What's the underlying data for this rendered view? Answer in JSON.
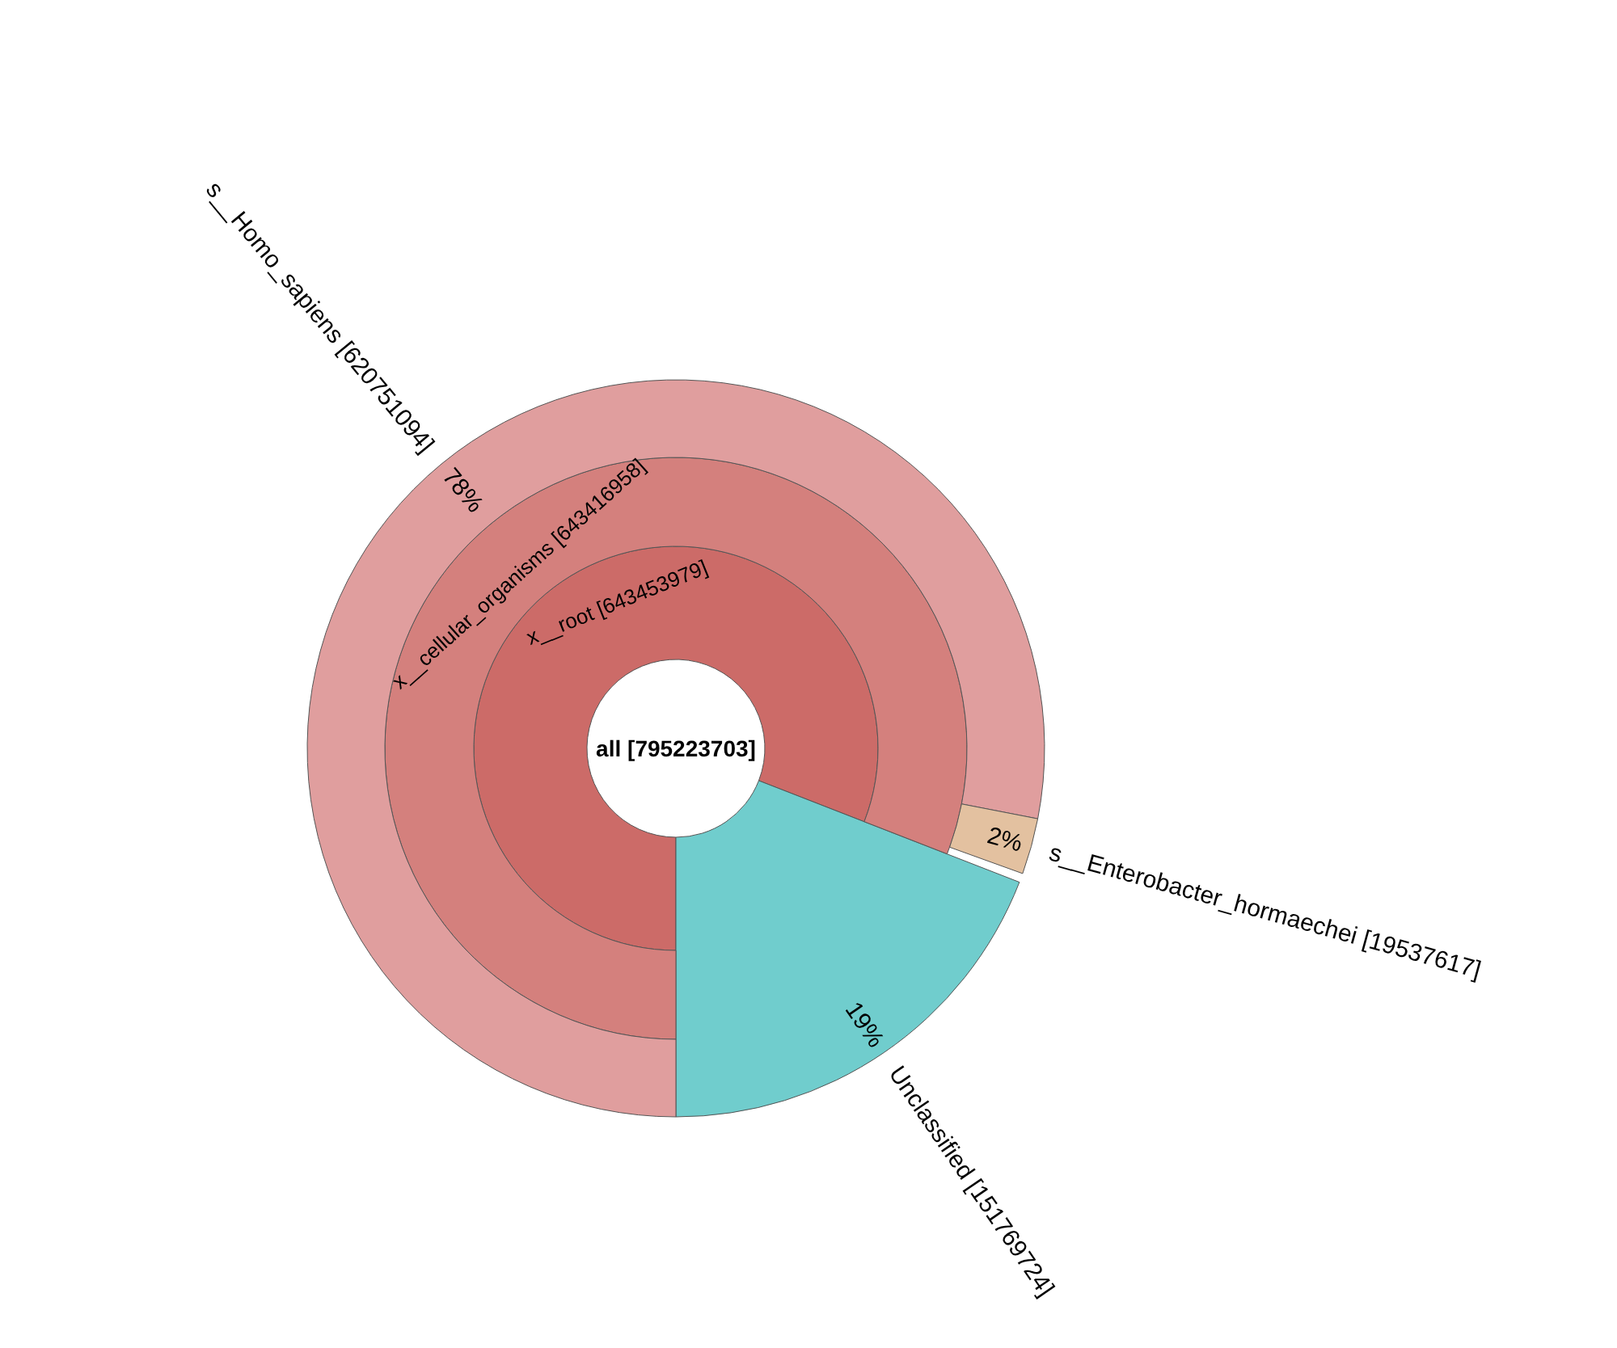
{
  "chart_data": {
    "type": "other",
    "categories": [
      "all",
      "x__root",
      "Unclassified",
      "x__cellular_organisms",
      "s__Homo_sapiens",
      "s__Enterobacter_hormaechei"
    ],
    "values": [
      795223703,
      643453979,
      151769724,
      643416958,
      620751094,
      19537617
    ],
    "data_labels": true,
    "colors": [
      "#ffffff",
      "#cc6b68",
      "#70cdcd",
      "#d4807d",
      "#e09e9e",
      "#e3c1a0"
    ],
    "annotations": [
      "19%",
      "78%",
      "2%",
      "[",
      "]"
    ]
  }
}
